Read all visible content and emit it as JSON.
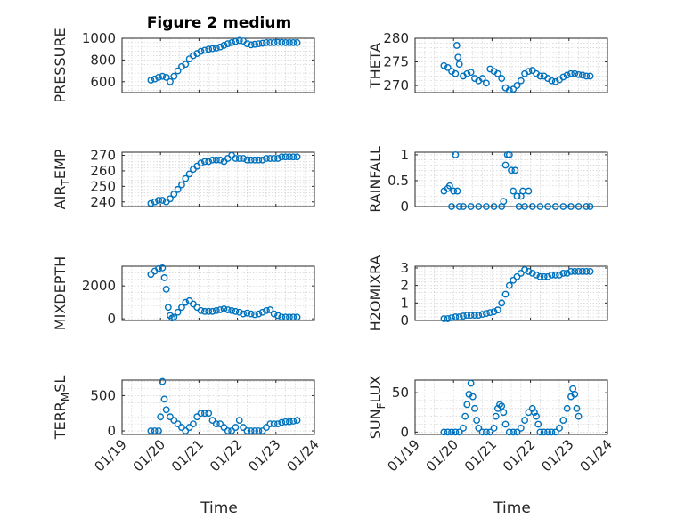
{
  "figure": {
    "title": "Figure 2 medium",
    "xlabel": "Time"
  },
  "chart_data": [
    {
      "type": "scatter",
      "name": "pressure",
      "ylabel": "PRESSURE",
      "ylabel_sub": "",
      "ylim": [
        500,
        1000
      ],
      "yticks": [
        600,
        800,
        1000
      ],
      "yticklabels": [
        "600",
        "800",
        "1000"
      ],
      "xlim": [
        "01/19",
        "01/24"
      ],
      "xticklabels": [
        "01/19",
        "01/20",
        "01/21",
        "01/22",
        "01/23",
        "01/24"
      ],
      "grid": true,
      "x": [
        "01/19 18:00",
        "01/19 20:24",
        "01/19 22:48",
        "01/20 01:12",
        "01/20 03:36",
        "01/20 06:00",
        "01/20 08:24",
        "01/20 10:48",
        "01/20 13:12",
        "01/20 15:36",
        "01/20 18:00",
        "01/20 20:24",
        "01/20 22:48",
        "01/21 01:12",
        "01/21 03:36",
        "01/21 06:00",
        "01/21 08:24",
        "01/21 10:48",
        "01/21 13:12",
        "01/21 15:36",
        "01/21 18:00",
        "01/21 20:24",
        "01/21 22:48",
        "01/22 01:12",
        "01/22 03:36",
        "01/22 06:00",
        "01/22 08:24",
        "01/22 10:48",
        "01/22 13:12",
        "01/22 15:36",
        "01/22 18:00",
        "01/22 20:24",
        "01/22 22:48",
        "01/23 01:12",
        "01/23 03:36",
        "01/23 06:00",
        "01/23 08:24",
        "01/23 10:48",
        "01/23 13:12"
      ],
      "y": [
        615,
        625,
        640,
        650,
        640,
        600,
        650,
        700,
        740,
        760,
        810,
        840,
        860,
        880,
        890,
        900,
        905,
        910,
        920,
        935,
        950,
        960,
        970,
        980,
        975,
        950,
        940,
        945,
        950,
        955,
        960,
        960,
        960,
        962,
        962,
        960,
        960,
        960,
        960
      ]
    },
    {
      "type": "scatter",
      "name": "theta",
      "ylabel": "THETA",
      "ylabel_sub": "",
      "ylim": [
        268.5,
        280
      ],
      "yticks": [
        270,
        275,
        280
      ],
      "yticklabels": [
        "270",
        "275",
        "280"
      ],
      "xlim": [
        "01/19",
        "01/24"
      ],
      "xticklabels": [
        "01/19",
        "01/20",
        "01/21",
        "01/22",
        "01/23",
        "01/24"
      ],
      "grid": true,
      "x": [
        "01/19 18:00",
        "01/19 20:24",
        "01/19 22:48",
        "01/20 01:12",
        "01/20 02:00",
        "01/20 02:48",
        "01/20 03:36",
        "01/20 06:00",
        "01/20 08:24",
        "01/20 10:48",
        "01/20 13:12",
        "01/20 15:36",
        "01/20 18:00",
        "01/20 20:24",
        "01/20 22:48",
        "01/21 01:12",
        "01/21 03:36",
        "01/21 06:00",
        "01/21 08:24",
        "01/21 10:48",
        "01/21 13:12",
        "01/21 15:36",
        "01/21 18:00",
        "01/21 20:24",
        "01/21 22:48",
        "01/22 01:12",
        "01/22 03:36",
        "01/22 06:00",
        "01/22 08:24",
        "01/22 10:48",
        "01/22 13:12",
        "01/22 15:36",
        "01/22 18:00",
        "01/22 20:24",
        "01/22 22:48",
        "01/23 01:12",
        "01/23 03:36",
        "01/23 06:00",
        "01/23 08:24",
        "01/23 10:48",
        "01/23 13:12"
      ],
      "y": [
        274.2,
        273.8,
        273.0,
        272.5,
        278.5,
        276.0,
        274.5,
        272.0,
        272.5,
        272.8,
        271.5,
        271.0,
        271.5,
        270.5,
        273.5,
        273.0,
        272.5,
        271.5,
        269.5,
        269.0,
        269.2,
        270.0,
        271.0,
        272.5,
        273.0,
        273.2,
        272.5,
        272.0,
        272.0,
        271.5,
        271.0,
        270.8,
        271.2,
        271.8,
        272.2,
        272.5,
        272.5,
        272.3,
        272.2,
        272.0,
        272.0
      ]
    },
    {
      "type": "scatter",
      "name": "air-temp",
      "ylabel": "AIR",
      "ylabel_sub": "T",
      "ylabel_rest": "EMP",
      "ylim": [
        237,
        272
      ],
      "yticks": [
        240,
        250,
        260,
        270
      ],
      "yticklabels": [
        "240",
        "250",
        "260",
        "270"
      ],
      "xlim": [
        "01/19",
        "01/24"
      ],
      "xticklabels": [
        "01/19",
        "01/20",
        "01/21",
        "01/22",
        "01/23",
        "01/24"
      ],
      "grid": true,
      "x": [
        "01/19 18:00",
        "01/19 20:24",
        "01/19 22:48",
        "01/20 01:12",
        "01/20 03:36",
        "01/20 06:00",
        "01/20 08:24",
        "01/20 10:48",
        "01/20 13:12",
        "01/20 15:36",
        "01/20 18:00",
        "01/20 20:24",
        "01/20 22:48",
        "01/21 01:12",
        "01/21 03:36",
        "01/21 06:00",
        "01/21 08:24",
        "01/21 10:48",
        "01/21 13:12",
        "01/21 15:36",
        "01/21 18:00",
        "01/21 20:24",
        "01/21 22:48",
        "01/22 01:12",
        "01/22 03:36",
        "01/22 06:00",
        "01/22 08:24",
        "01/22 10:48",
        "01/22 13:12",
        "01/22 15:36",
        "01/22 18:00",
        "01/22 20:24",
        "01/22 22:48",
        "01/23 01:12",
        "01/23 03:36",
        "01/23 06:00",
        "01/23 08:24",
        "01/23 10:48",
        "01/23 13:12"
      ],
      "y": [
        239,
        240,
        241,
        241,
        240,
        242,
        245,
        248,
        251,
        255,
        258,
        261,
        263,
        265,
        266,
        266,
        267,
        267,
        267,
        266,
        268,
        270,
        268,
        268,
        268,
        267,
        267,
        267,
        267,
        267,
        268,
        268,
        268,
        268,
        269,
        269,
        269,
        269,
        269
      ]
    },
    {
      "type": "scatter",
      "name": "rainfall",
      "ylabel": "RAINFALL",
      "ylabel_sub": "",
      "ylim": [
        0,
        1.05
      ],
      "yticks": [
        0,
        0.5,
        1
      ],
      "yticklabels": [
        "0",
        "0.5",
        "1"
      ],
      "xlim": [
        "01/19",
        "01/24"
      ],
      "xticklabels": [
        "01/19",
        "01/20",
        "01/21",
        "01/22",
        "01/23",
        "01/24"
      ],
      "grid": true,
      "x": [
        "01/19 18:00",
        "01/19 20:24",
        "01/19 21:36",
        "01/19 22:48",
        "01/20 00:00",
        "01/20 01:12",
        "01/20 02:24",
        "01/20 03:36",
        "01/20 06:00",
        "01/20 10:48",
        "01/20 15:36",
        "01/20 20:24",
        "01/21 01:12",
        "01/21 06:00",
        "01/21 07:12",
        "01/21 08:24",
        "01/21 09:36",
        "01/21 10:48",
        "01/21 12:00",
        "01/21 13:12",
        "01/21 14:24",
        "01/21 15:36",
        "01/21 16:48",
        "01/21 18:00",
        "01/21 19:12",
        "01/21 20:24",
        "01/21 22:48",
        "01/22 01:12",
        "01/22 06:00",
        "01/22 10:48",
        "01/22 15:36",
        "01/22 20:24",
        "01/23 01:12",
        "01/23 06:00",
        "01/23 10:48",
        "01/23 13:12"
      ],
      "y": [
        0.3,
        0.35,
        0.4,
        0.0,
        0.3,
        1.0,
        0.3,
        0.0,
        0.0,
        0.0,
        0.0,
        0.0,
        0.0,
        0.0,
        0.1,
        0.8,
        1.0,
        1.0,
        0.7,
        0.3,
        0.7,
        0.2,
        0.0,
        0.2,
        0.3,
        0.0,
        0.3,
        0.0,
        0.0,
        0.0,
        0.0,
        0.0,
        0.0,
        0.0,
        0.0,
        0.0
      ]
    },
    {
      "type": "scatter",
      "name": "mixdepth",
      "ylabel": "MIXDEPTH",
      "ylabel_sub": "",
      "ylim": [
        -100,
        3200
      ],
      "yticks": [
        0,
        2000
      ],
      "yticklabels": [
        "0",
        "2000"
      ],
      "xlim": [
        "01/19",
        "01/24"
      ],
      "xticklabels": [
        "01/19",
        "01/20",
        "01/21",
        "01/22",
        "01/23",
        "01/24"
      ],
      "grid": true,
      "x": [
        "01/19 18:00",
        "01/19 20:24",
        "01/19 22:48",
        "01/20 01:12",
        "01/20 02:24",
        "01/20 03:36",
        "01/20 04:48",
        "01/20 06:00",
        "01/20 07:12",
        "01/20 08:24",
        "01/20 10:48",
        "01/20 13:12",
        "01/20 15:36",
        "01/20 18:00",
        "01/20 20:24",
        "01/20 22:48",
        "01/21 01:12",
        "01/21 03:36",
        "01/21 06:00",
        "01/21 08:24",
        "01/21 10:48",
        "01/21 13:12",
        "01/21 15:36",
        "01/21 18:00",
        "01/21 20:24",
        "01/21 22:48",
        "01/22 01:12",
        "01/22 03:36",
        "01/22 06:00",
        "01/22 08:24",
        "01/22 10:48",
        "01/22 13:12",
        "01/22 15:36",
        "01/22 18:00",
        "01/22 20:24",
        "01/22 22:48",
        "01/23 01:12",
        "01/23 03:36",
        "01/23 06:00",
        "01/23 08:24",
        "01/23 10:48",
        "01/23 13:12"
      ],
      "y": [
        2700,
        2900,
        3050,
        3100,
        2500,
        1800,
        700,
        200,
        50,
        100,
        400,
        700,
        1000,
        1100,
        900,
        700,
        500,
        450,
        450,
        450,
        500,
        550,
        600,
        550,
        500,
        450,
        400,
        300,
        350,
        300,
        250,
        300,
        400,
        500,
        550,
        300,
        200,
        100,
        100,
        100,
        100,
        100
      ]
    },
    {
      "type": "scatter",
      "name": "h2omixra",
      "ylabel": "H2OMIXRA",
      "ylabel_sub": "",
      "ylim": [
        0,
        3.1
      ],
      "yticks": [
        0,
        1,
        2,
        3
      ],
      "yticklabels": [
        "0",
        "1",
        "2",
        "3"
      ],
      "xlim": [
        "01/19",
        "01/24"
      ],
      "xticklabels": [
        "01/19",
        "01/20",
        "01/21",
        "01/22",
        "01/23",
        "01/24"
      ],
      "grid": true,
      "x": [
        "01/19 18:00",
        "01/19 20:24",
        "01/19 22:48",
        "01/20 01:12",
        "01/20 03:36",
        "01/20 06:00",
        "01/20 08:24",
        "01/20 10:48",
        "01/20 13:12",
        "01/20 15:36",
        "01/20 18:00",
        "01/20 20:24",
        "01/20 22:48",
        "01/21 01:12",
        "01/21 03:36",
        "01/21 06:00",
        "01/21 08:24",
        "01/21 10:48",
        "01/21 13:12",
        "01/21 15:36",
        "01/21 18:00",
        "01/21 20:24",
        "01/21 22:48",
        "01/22 01:12",
        "01/22 03:36",
        "01/22 06:00",
        "01/22 08:24",
        "01/22 10:48",
        "01/22 13:12",
        "01/22 15:36",
        "01/22 18:00",
        "01/22 20:24",
        "01/22 22:48",
        "01/23 01:12",
        "01/23 03:36",
        "01/23 06:00",
        "01/23 08:24",
        "01/23 10:48",
        "01/23 13:12"
      ],
      "y": [
        0.1,
        0.1,
        0.15,
        0.2,
        0.2,
        0.25,
        0.3,
        0.3,
        0.3,
        0.3,
        0.35,
        0.4,
        0.45,
        0.5,
        0.6,
        1.0,
        1.5,
        2.0,
        2.3,
        2.5,
        2.7,
        2.9,
        2.8,
        2.7,
        2.6,
        2.5,
        2.5,
        2.5,
        2.6,
        2.6,
        2.6,
        2.7,
        2.7,
        2.8,
        2.8,
        2.8,
        2.8,
        2.8,
        2.8
      ]
    },
    {
      "type": "scatter",
      "name": "terrain-msl",
      "ylabel": "TERR",
      "ylabel_sub": "M",
      "ylabel_rest": "SL",
      "ylim": [
        -50,
        720
      ],
      "yticks": [
        0,
        500
      ],
      "yticklabels": [
        "0",
        "500"
      ],
      "xlim": [
        "01/19",
        "01/24"
      ],
      "xticklabels": [
        "01/19",
        "01/20",
        "01/21",
        "01/22",
        "01/23",
        "01/24"
      ],
      "grid": true,
      "x": [
        "01/19 18:00",
        "01/19 20:24",
        "01/19 22:48",
        "01/20 00:00",
        "01/20 01:12",
        "01/20 02:24",
        "01/20 03:36",
        "01/20 06:00",
        "01/20 08:24",
        "01/20 10:48",
        "01/20 13:12",
        "01/20 15:36",
        "01/20 18:00",
        "01/20 20:24",
        "01/20 22:48",
        "01/21 01:12",
        "01/21 03:36",
        "01/21 06:00",
        "01/21 08:24",
        "01/21 10:48",
        "01/21 13:12",
        "01/21 15:36",
        "01/21 18:00",
        "01/21 20:24",
        "01/21 22:48",
        "01/22 01:12",
        "01/22 03:36",
        "01/22 06:00",
        "01/22 08:24",
        "01/22 10:48",
        "01/22 13:12",
        "01/22 15:36",
        "01/22 18:00",
        "01/22 20:24",
        "01/22 22:48",
        "01/23 01:12",
        "01/23 03:36",
        "01/23 06:00",
        "01/23 08:24",
        "01/23 10:48",
        "01/23 13:12"
      ],
      "y": [
        0,
        0,
        0,
        200,
        700,
        450,
        300,
        200,
        150,
        100,
        50,
        0,
        50,
        100,
        200,
        250,
        250,
        250,
        150,
        100,
        100,
        50,
        0,
        0,
        50,
        150,
        50,
        0,
        0,
        0,
        0,
        0,
        50,
        100,
        100,
        100,
        120,
        130,
        130,
        140,
        150
      ]
    },
    {
      "type": "scatter",
      "name": "sun-flux",
      "ylabel": "SUN",
      "ylabel_sub": "F",
      "ylabel_rest": "LUX",
      "ylim": [
        -3,
        66
      ],
      "yticks": [
        0,
        50
      ],
      "yticklabels": [
        "0",
        "50"
      ],
      "xlim": [
        "01/19",
        "01/24"
      ],
      "xticklabels": [
        "01/19",
        "01/20",
        "01/21",
        "01/22",
        "01/23",
        "01/24"
      ],
      "grid": true,
      "x": [
        "01/19 18:00",
        "01/19 20:24",
        "01/19 22:48",
        "01/20 01:12",
        "01/20 03:36",
        "01/20 06:00",
        "01/20 07:12",
        "01/20 08:24",
        "01/20 09:36",
        "01/20 10:48",
        "01/20 12:00",
        "01/20 13:12",
        "01/20 14:24",
        "01/20 15:36",
        "01/20 18:00",
        "01/20 20:24",
        "01/20 22:48",
        "01/21 01:12",
        "01/21 02:24",
        "01/21 03:36",
        "01/21 04:48",
        "01/21 06:00",
        "01/21 07:12",
        "01/21 08:24",
        "01/21 10:48",
        "01/21 13:12",
        "01/21 15:36",
        "01/21 18:00",
        "01/21 20:24",
        "01/21 22:48",
        "01/22 01:12",
        "01/22 02:24",
        "01/22 03:36",
        "01/22 04:48",
        "01/22 06:00",
        "01/22 08:24",
        "01/22 10:48",
        "01/22 13:12",
        "01/22 15:36",
        "01/22 18:00",
        "01/22 20:24",
        "01/22 22:48",
        "01/23 01:12",
        "01/23 02:24",
        "01/23 03:36",
        "01/23 04:48",
        "01/23 06:00"
      ],
      "y": [
        0,
        0,
        0,
        0,
        0,
        5,
        20,
        35,
        48,
        62,
        45,
        30,
        15,
        5,
        0,
        0,
        0,
        5,
        20,
        30,
        35,
        33,
        25,
        10,
        0,
        0,
        0,
        5,
        15,
        25,
        30,
        25,
        20,
        10,
        0,
        0,
        0,
        0,
        0,
        5,
        15,
        30,
        45,
        55,
        48,
        30,
        20
      ]
    }
  ]
}
